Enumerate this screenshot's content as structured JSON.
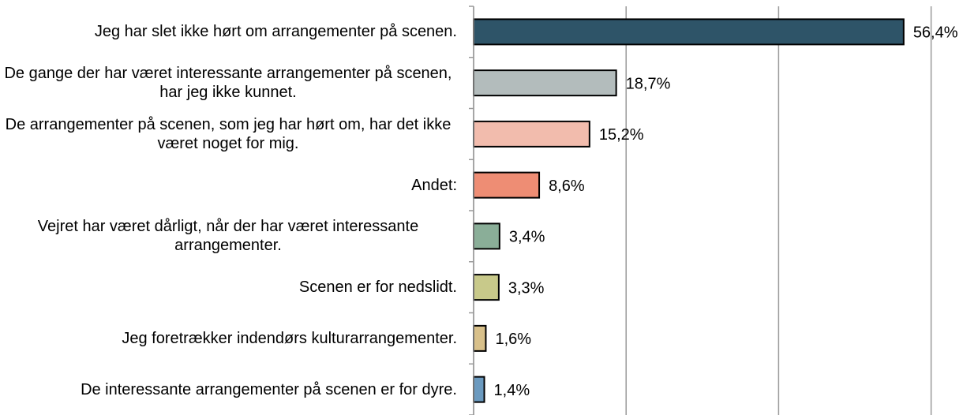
{
  "chart_data": {
    "type": "bar",
    "orientation": "horizontal",
    "categories": [
      "Jeg har slet ikke hørt om arrangementer på scenen.",
      "De gange der har været interessante arrangementer på scenen, har jeg ikke kunnet.",
      "De arrangementer på scenen, som jeg har hørt om, har det ikke været noget for mig.",
      "Andet:",
      "Vejret har været dårligt, når der har været interessante arrangementer.",
      "Scenen er for nedslidt.",
      "Jeg foretrækker indendørs kulturarrangementer.",
      "De interessante arrangementer på scenen er for dyre."
    ],
    "values": [
      56.4,
      18.7,
      15.2,
      8.6,
      3.4,
      3.3,
      1.6,
      1.4
    ],
    "value_labels": [
      "56,4%",
      "18,7%",
      "15,2%",
      "8,6%",
      "3,4%",
      "3,3%",
      "1,6%",
      "1,4%"
    ],
    "colors": [
      "#2e5468",
      "#b3bcbc",
      "#f2bcad",
      "#ee8d74",
      "#8aae98",
      "#c8c98a",
      "#d8c08a",
      "#6b9abf"
    ],
    "xlim": [
      0,
      60
    ],
    "xticks": [
      0,
      20,
      40,
      60
    ],
    "grid": true
  }
}
